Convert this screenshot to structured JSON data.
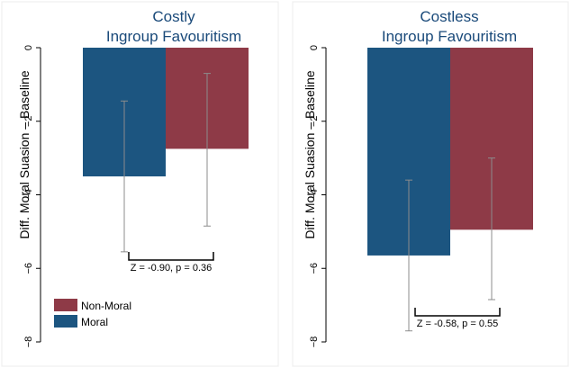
{
  "chart_data": [
    {
      "type": "bar",
      "title": [
        "Costly",
        "Ingroup Favouritism"
      ],
      "ylabel": "Diff. Moral Suasion – Baseline",
      "ylim": [
        -8,
        0
      ],
      "yticks": [
        0,
        -2,
        -4,
        -6,
        -8
      ],
      "ytick_labels": [
        "0",
        "−2",
        "−4",
        "−6",
        "−8"
      ],
      "series": [
        {
          "name": "Moral",
          "value": -3.5,
          "ci": [
            -5.55,
            -1.45
          ],
          "color": "#1c5580"
        },
        {
          "name": "Non-Moral",
          "value": -2.75,
          "ci": [
            -4.85,
            -0.7
          ],
          "color": "#8e3a47"
        }
      ],
      "annotation": "Z = -0.90, p = 0.36"
    },
    {
      "type": "bar",
      "title": [
        "Costless",
        "Ingroup Favouritism"
      ],
      "ylabel": "Diff. Moral Suasion – Baseline",
      "ylim": [
        -8,
        0
      ],
      "yticks": [
        0,
        -2,
        -4,
        -6,
        -8
      ],
      "ytick_labels": [
        "0",
        "−2",
        "−4",
        "−6",
        "−8"
      ],
      "series": [
        {
          "name": "Moral",
          "value": -5.65,
          "ci": [
            -7.7,
            -3.6
          ],
          "color": "#1c5580"
        },
        {
          "name": "Non-Moral",
          "value": -4.95,
          "ci": [
            -6.85,
            -3.0
          ],
          "color": "#8e3a47"
        }
      ],
      "annotation": "Z = -0.58, p = 0.55"
    }
  ],
  "legend": {
    "placement": "bottom-left of first panel",
    "entries": [
      {
        "label": "Non-Moral",
        "color": "#8e3a47"
      },
      {
        "label": "Moral",
        "color": "#1c5580"
      }
    ]
  }
}
